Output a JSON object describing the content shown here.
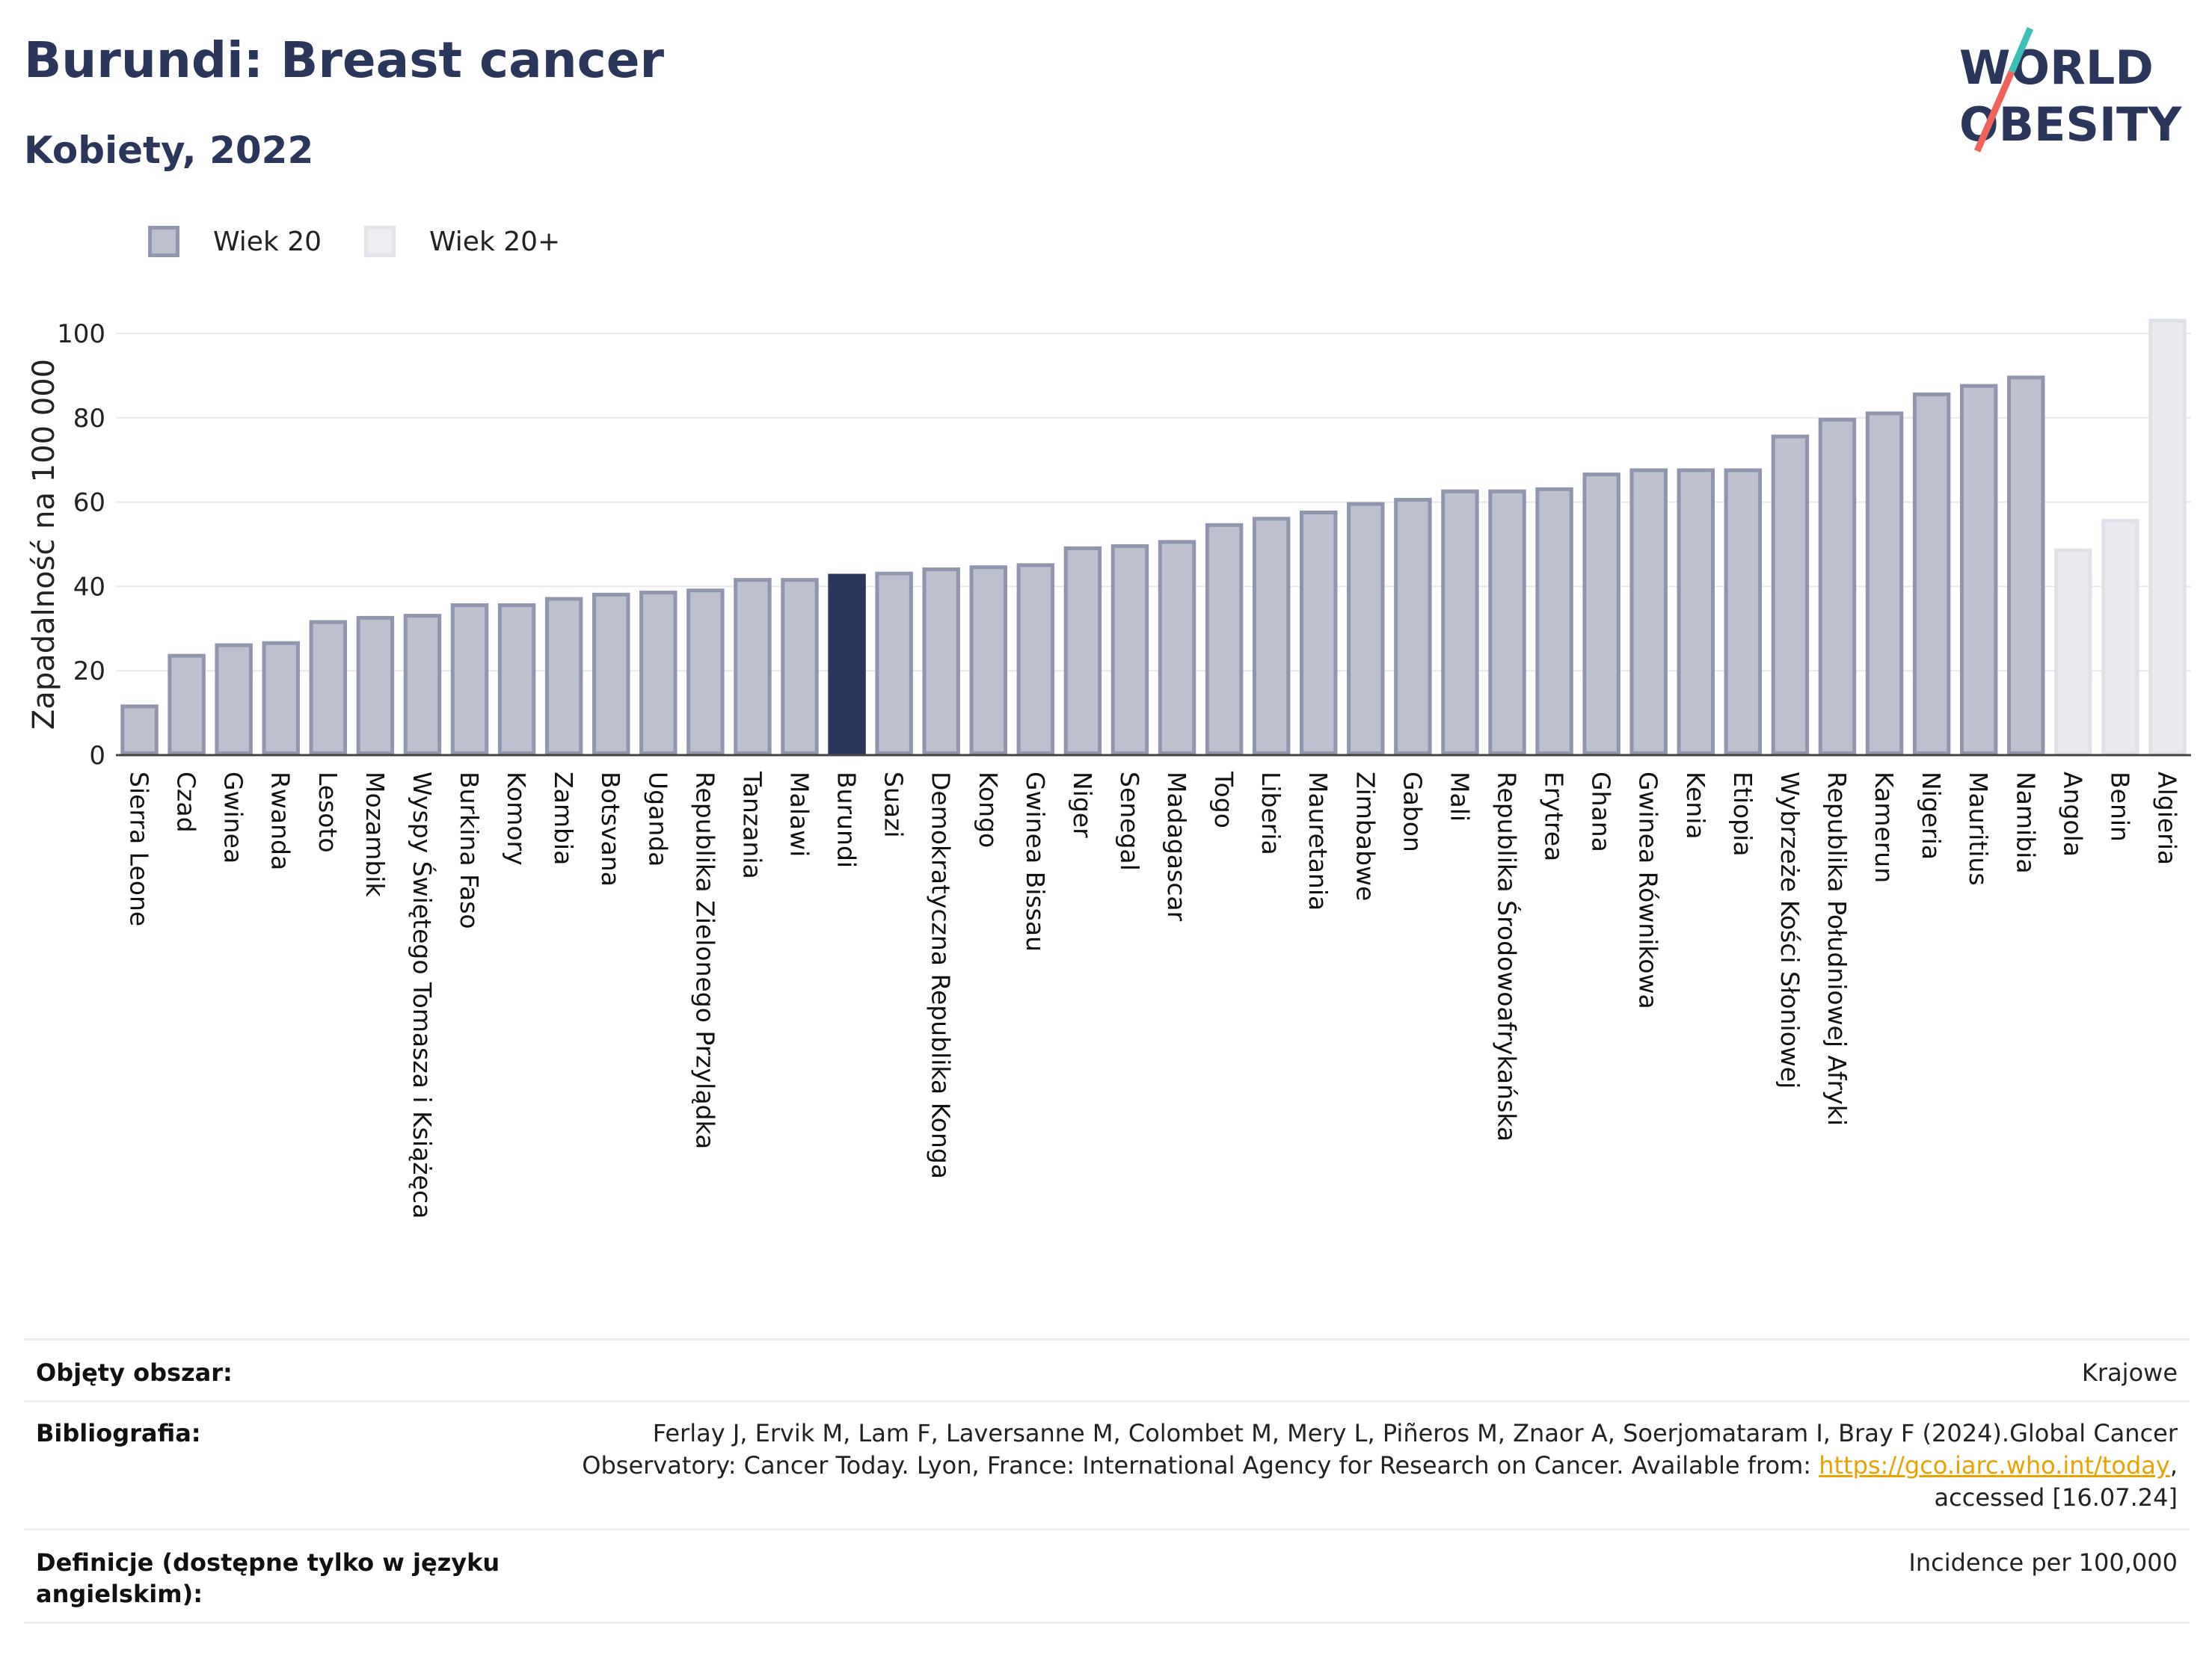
{
  "header": {
    "title": "Burundi: Breast cancer",
    "subtitle": "Kobiety, 2022"
  },
  "logo": {
    "line1": "WORLD",
    "line2": "OBESITY"
  },
  "colors": {
    "bar_fill": "#bcc0cf",
    "bar_stroke": "#9096ad",
    "highlight_fill": "#2b365d",
    "plus_fill": "#e9eaef",
    "plus_stroke": "#dfe1e8",
    "title": "#2b365d",
    "grid": "#e8e8ec",
    "logo_teal": "#3bbfb6",
    "logo_red": "#f0625a"
  },
  "legend": [
    {
      "label": "Wiek 20",
      "fill": "#bcc0cf",
      "stroke": "#9096ad"
    },
    {
      "label": "Wiek 20+",
      "fill": "#ecedf1",
      "stroke": "#e3e4ea"
    }
  ],
  "chart_data": {
    "type": "bar",
    "ylabel": "Zapadalność na 100 000",
    "xlabel": "",
    "ylim": [
      0,
      105
    ],
    "yticks": [
      0,
      20,
      40,
      60,
      80,
      100
    ],
    "grid": true,
    "legend_position": "top-left",
    "highlight": "Burundi",
    "categories": [
      "Sierra Leone",
      "Czad",
      "Gwinea",
      "Rwanda",
      "Lesoto",
      "Mozambik",
      "Wyspy Świętego Tomasza i Książęca",
      "Burkina Faso",
      "Komory",
      "Zambia",
      "Botsvana",
      "Uganda",
      "Republika Zielonego Przylądka",
      "Tanzania",
      "Malawi",
      "Burundi",
      "Suazi",
      "Demokratyczna Republika Konga",
      "Kongo",
      "Gwinea Bissau",
      "Niger",
      "Senegal",
      "Madagascar",
      "Togo",
      "Liberia",
      "Mauretania",
      "Zimbabwe",
      "Gabon",
      "Mali",
      "Republika Środowoafrykańska",
      "Erytrea",
      "Ghana",
      "Gwinea Równikowa",
      "Kenia",
      "Etiopia",
      "Wybrzeże Kości Słoniowej",
      "Republika Południowej Afryki",
      "Kamerun",
      "Nigeria",
      "Mauritius",
      "Namibia",
      "Angola",
      "Benin",
      "Algieria"
    ],
    "values": [
      12,
      24,
      26.5,
      27,
      32,
      33,
      33.5,
      36,
      36,
      37.5,
      38.5,
      39,
      39.5,
      42,
      42,
      43,
      43.5,
      44.5,
      45,
      45.5,
      49.5,
      50,
      51,
      55,
      56.5,
      58,
      60,
      61,
      63,
      63,
      63.5,
      67,
      68,
      68,
      68,
      76,
      80,
      81.5,
      86,
      88,
      90,
      49,
      56,
      103.5
    ],
    "series_of": [
      "Wiek 20",
      "Wiek 20",
      "Wiek 20",
      "Wiek 20",
      "Wiek 20",
      "Wiek 20",
      "Wiek 20",
      "Wiek 20",
      "Wiek 20",
      "Wiek 20",
      "Wiek 20",
      "Wiek 20",
      "Wiek 20",
      "Wiek 20",
      "Wiek 20",
      "Wiek 20",
      "Wiek 20",
      "Wiek 20",
      "Wiek 20",
      "Wiek 20",
      "Wiek 20",
      "Wiek 20",
      "Wiek 20",
      "Wiek 20",
      "Wiek 20",
      "Wiek 20",
      "Wiek 20",
      "Wiek 20",
      "Wiek 20",
      "Wiek 20",
      "Wiek 20",
      "Wiek 20",
      "Wiek 20",
      "Wiek 20",
      "Wiek 20",
      "Wiek 20",
      "Wiek 20",
      "Wiek 20",
      "Wiek 20",
      "Wiek 20",
      "Wiek 20",
      "Wiek 20+",
      "Wiek 20+",
      "Wiek 20+"
    ]
  },
  "info_table": [
    {
      "label": "Objęty obszar:",
      "value_lines": [
        "Krajowe"
      ]
    },
    {
      "label": "Bibliografia:",
      "value_lines": [
        "Ferlay J, Ervik M, Lam F, Laversanne M, Colombet M, Mery L, Piñeros M, Znaor A, Soerjomataram I, Bray F (2024).Global Cancer",
        "Observatory: Cancer Today. Lyon, France: International Agency for Research on Cancer. Available from: ",
        "accessed [16.07.24]"
      ],
      "link_text": "https://gco.iarc.who.int/today",
      "after_link": ","
    },
    {
      "label_lines": [
        "Definicje (dostępne tylko w języku",
        "angielskim):"
      ],
      "value_lines": [
        "Incidence per 100,000"
      ]
    }
  ]
}
